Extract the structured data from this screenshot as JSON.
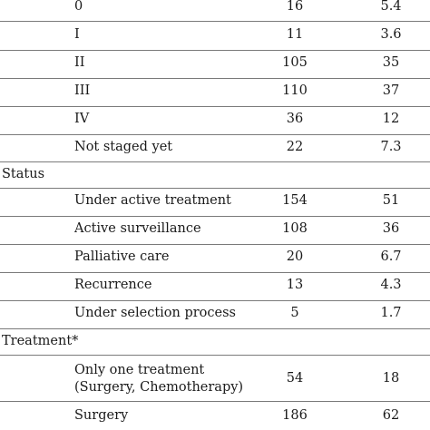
{
  "rows": [
    {
      "type": "data",
      "label": "0",
      "n": "16",
      "pct": "5.4"
    },
    {
      "type": "data",
      "label": "I",
      "n": "11",
      "pct": "3.6"
    },
    {
      "type": "data",
      "label": "II",
      "n": "105",
      "pct": "35"
    },
    {
      "type": "data",
      "label": "III",
      "n": "110",
      "pct": "37"
    },
    {
      "type": "data",
      "label": "IV",
      "n": "36",
      "pct": "12"
    },
    {
      "type": "data",
      "label": "Not staged yet",
      "n": "22",
      "pct": "7.3"
    },
    {
      "type": "section",
      "label": "Status"
    },
    {
      "type": "data",
      "label": "Under active treatment",
      "n": "154",
      "pct": "51"
    },
    {
      "type": "data",
      "label": "Active surveillance",
      "n": "108",
      "pct": "36"
    },
    {
      "type": "data",
      "label": "Palliative care",
      "n": "20",
      "pct": "6.7"
    },
    {
      "type": "data",
      "label": "Recurrence",
      "n": "13",
      "pct": "4.3"
    },
    {
      "type": "data",
      "label": "Under selection process",
      "n": "5",
      "pct": "1.7"
    },
    {
      "type": "section",
      "label": "Treatment*"
    },
    {
      "type": "data",
      "label": "Only one treatment",
      "label2": "(Surgery, Chemotherapy)",
      "n": "54",
      "pct": "18"
    },
    {
      "type": "data",
      "label": "Surgery",
      "n": "186",
      "pct": "62"
    }
  ]
}
